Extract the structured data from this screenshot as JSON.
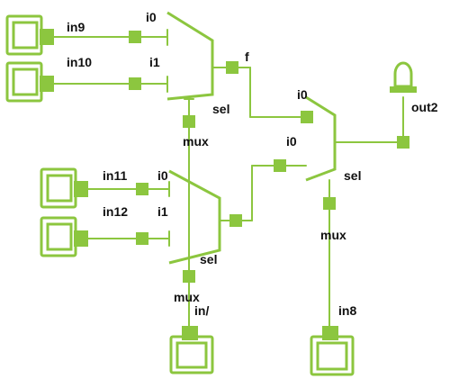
{
  "colors": {
    "accent": "#8cc63f",
    "text": "#111111",
    "background": "#ffffff"
  },
  "inputs": {
    "in9": "in9",
    "in10": "in10",
    "in11": "in11",
    "in12": "in12",
    "in7": "in/",
    "in8": "in8"
  },
  "outputs": {
    "out2": "out2"
  },
  "mux_top": {
    "i0": "i0",
    "i1": "i1",
    "sel": "sel",
    "name": "mux",
    "out": "f"
  },
  "mux_bottom": {
    "i0": "i0",
    "i1": "i1",
    "sel": "sel",
    "name": "mux"
  },
  "mux_right": {
    "i0_top": "i0",
    "i0_bottom": "i0",
    "sel": "sel",
    "name": "mux"
  }
}
